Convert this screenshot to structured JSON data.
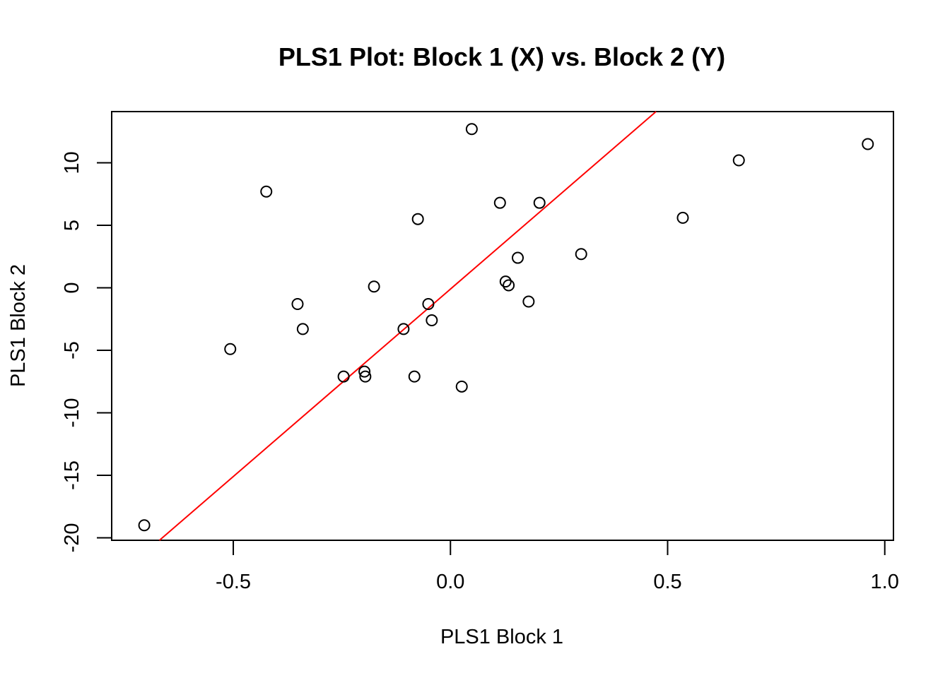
{
  "chart_data": {
    "type": "scatter",
    "title": "PLS1 Plot: Block 1 (X) vs. Block 2 (Y)",
    "xlabel": "PLS1 Block 1",
    "ylabel": "PLS1 Block 2",
    "xlim": [
      -0.78,
      1.02
    ],
    "ylim": [
      -20.2,
      14.1
    ],
    "xticks": [
      -0.5,
      0.0,
      0.5,
      1.0
    ],
    "xtick_labels": [
      "-0.5",
      "0.0",
      "0.5",
      "1.0"
    ],
    "yticks": [
      -20,
      -15,
      -10,
      -5,
      0,
      5,
      10
    ],
    "ytick_labels": [
      "-20",
      "-15",
      "-10",
      "-5",
      "0",
      "5",
      "10"
    ],
    "grid": false,
    "series": [
      {
        "color": "#000000",
        "marker": "open-circle",
        "points": [
          {
            "x": -0.705,
            "y": -19.0
          },
          {
            "x": -0.507,
            "y": -4.9
          },
          {
            "x": -0.424,
            "y": 7.7
          },
          {
            "x": -0.352,
            "y": -1.3
          },
          {
            "x": -0.34,
            "y": -3.3
          },
          {
            "x": -0.246,
            "y": -7.1
          },
          {
            "x": -0.198,
            "y": -6.7
          },
          {
            "x": -0.196,
            "y": -7.1
          },
          {
            "x": -0.176,
            "y": 0.1
          },
          {
            "x": -0.108,
            "y": -3.3
          },
          {
            "x": -0.083,
            "y": -7.1
          },
          {
            "x": -0.075,
            "y": 5.5
          },
          {
            "x": -0.051,
            "y": -1.3
          },
          {
            "x": -0.043,
            "y": -2.6
          },
          {
            "x": 0.026,
            "y": -7.9
          },
          {
            "x": 0.049,
            "y": 12.7
          },
          {
            "x": 0.114,
            "y": 6.8
          },
          {
            "x": 0.127,
            "y": 0.5
          },
          {
            "x": 0.134,
            "y": 0.2
          },
          {
            "x": 0.155,
            "y": 2.4
          },
          {
            "x": 0.18,
            "y": -1.1
          },
          {
            "x": 0.205,
            "y": 6.8
          },
          {
            "x": 0.301,
            "y": 2.7
          },
          {
            "x": 0.535,
            "y": 5.6
          },
          {
            "x": 0.664,
            "y": 10.2
          },
          {
            "x": 0.961,
            "y": 11.5
          }
        ]
      }
    ],
    "fit_line": {
      "color": "#ff0000",
      "slope": 30.0,
      "intercept": -0.1
    }
  }
}
